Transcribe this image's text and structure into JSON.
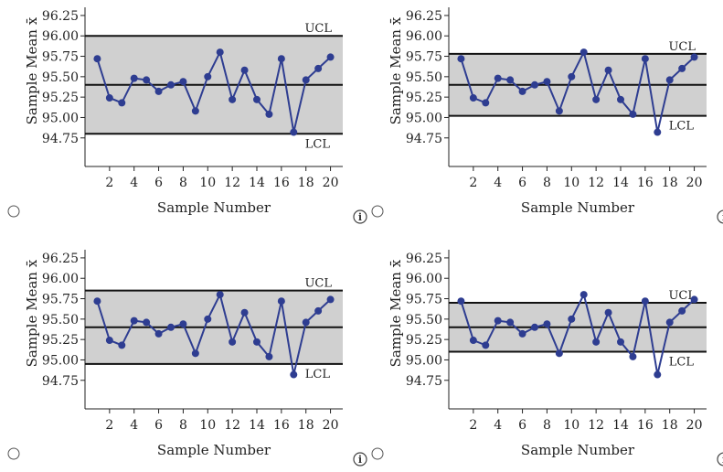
{
  "colors": {
    "band": "#d0d0d0",
    "series": "#2e3d91",
    "axis": "#222222",
    "limit_line": "#111111"
  },
  "labels": {
    "ucl": "UCL",
    "lcl": "LCL",
    "info_icon": "i"
  },
  "chart_data": [
    {
      "type": "line",
      "xlabel": "Sample Number",
      "ylabel": "Sample Mean x̄",
      "xticks": [
        2,
        4,
        6,
        8,
        10,
        12,
        14,
        16,
        18,
        20
      ],
      "yticks": [
        "96.25",
        "96.00",
        "95.75",
        "95.50",
        "95.25",
        "95.00",
        "94.75"
      ],
      "ylim": [
        94.4,
        96.35
      ],
      "xlim": [
        0,
        21
      ],
      "x": [
        1,
        2,
        3,
        4,
        5,
        6,
        7,
        8,
        9,
        10,
        11,
        12,
        13,
        14,
        15,
        16,
        17,
        18,
        19,
        20
      ],
      "values": [
        95.72,
        95.24,
        95.18,
        95.48,
        95.46,
        95.32,
        95.4,
        95.44,
        95.08,
        95.5,
        95.8,
        95.22,
        95.58,
        95.22,
        95.04,
        95.72,
        94.82,
        95.46,
        95.6,
        95.74
      ],
      "center": 95.4,
      "ucl": 96.0,
      "lcl": 94.8
    },
    {
      "type": "line",
      "xlabel": "Sample Number",
      "ylabel": "Sample Mean x̄",
      "xticks": [
        2,
        4,
        6,
        8,
        10,
        12,
        14,
        16,
        18,
        20
      ],
      "yticks": [
        "96.25",
        "96.00",
        "95.75",
        "95.50",
        "95.25",
        "95.00",
        "94.75"
      ],
      "ylim": [
        94.4,
        96.35
      ],
      "xlim": [
        0,
        21
      ],
      "x": [
        1,
        2,
        3,
        4,
        5,
        6,
        7,
        8,
        9,
        10,
        11,
        12,
        13,
        14,
        15,
        16,
        17,
        18,
        19,
        20
      ],
      "values": [
        95.72,
        95.24,
        95.18,
        95.48,
        95.46,
        95.32,
        95.4,
        95.44,
        95.08,
        95.5,
        95.8,
        95.22,
        95.58,
        95.22,
        95.04,
        95.72,
        94.82,
        95.46,
        95.6,
        95.74
      ],
      "center": 95.4,
      "ucl": 95.78,
      "lcl": 95.02
    },
    {
      "type": "line",
      "xlabel": "Sample Number",
      "ylabel": "Sample Mean x̄",
      "xticks": [
        2,
        4,
        6,
        8,
        10,
        12,
        14,
        16,
        18,
        20
      ],
      "yticks": [
        "96.25",
        "96.00",
        "95.75",
        "95.50",
        "95.25",
        "95.00",
        "94.75"
      ],
      "ylim": [
        94.4,
        96.35
      ],
      "xlim": [
        0,
        21
      ],
      "x": [
        1,
        2,
        3,
        4,
        5,
        6,
        7,
        8,
        9,
        10,
        11,
        12,
        13,
        14,
        15,
        16,
        17,
        18,
        19,
        20
      ],
      "values": [
        95.72,
        95.24,
        95.18,
        95.48,
        95.46,
        95.32,
        95.4,
        95.44,
        95.08,
        95.5,
        95.8,
        95.22,
        95.58,
        95.22,
        95.04,
        95.72,
        94.82,
        95.46,
        95.6,
        95.74
      ],
      "center": 95.4,
      "ucl": 95.85,
      "lcl": 94.95
    },
    {
      "type": "line",
      "xlabel": "Sample Number",
      "ylabel": "Sample Mean x̄",
      "xticks": [
        2,
        4,
        6,
        8,
        10,
        12,
        14,
        16,
        18,
        20
      ],
      "yticks": [
        "96.25",
        "96.00",
        "95.75",
        "95.50",
        "95.25",
        "95.00",
        "94.75"
      ],
      "ylim": [
        94.4,
        96.35
      ],
      "xlim": [
        0,
        21
      ],
      "x": [
        1,
        2,
        3,
        4,
        5,
        6,
        7,
        8,
        9,
        10,
        11,
        12,
        13,
        14,
        15,
        16,
        17,
        18,
        19,
        20
      ],
      "values": [
        95.72,
        95.24,
        95.18,
        95.48,
        95.46,
        95.32,
        95.4,
        95.44,
        95.08,
        95.5,
        95.8,
        95.22,
        95.58,
        95.22,
        95.04,
        95.72,
        94.82,
        95.46,
        95.6,
        95.74
      ],
      "center": 95.4,
      "ucl": 95.7,
      "lcl": 95.1
    }
  ]
}
